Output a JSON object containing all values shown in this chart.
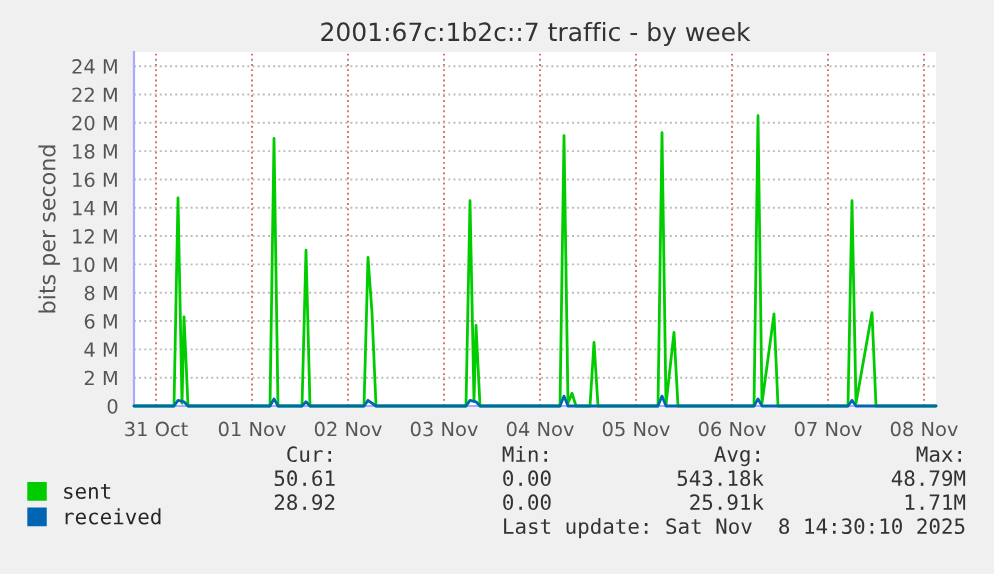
{
  "chart_data": {
    "type": "line",
    "title": "2001:67c:1b2c::7 traffic - by week",
    "ylabel": "bits per second",
    "xlim": [
      "2025-10-30T18:30",
      "2025-11-08T03:00"
    ],
    "xticks": [
      {
        "value": "2025-10-31",
        "label": "31 Oct"
      },
      {
        "value": "2025-11-01",
        "label": "01 Nov"
      },
      {
        "value": "2025-11-02",
        "label": "02 Nov"
      },
      {
        "value": "2025-11-03",
        "label": "03 Nov"
      },
      {
        "value": "2025-11-04",
        "label": "04 Nov"
      },
      {
        "value": "2025-11-05",
        "label": "05 Nov"
      },
      {
        "value": "2025-11-06",
        "label": "06 Nov"
      },
      {
        "value": "2025-11-07",
        "label": "07 Nov"
      },
      {
        "value": "2025-11-08",
        "label": "08 Nov"
      }
    ],
    "ylim": [
      0,
      25
    ],
    "yticks": [
      0,
      {
        "value": 2,
        "label": "2 M"
      },
      {
        "value": 4,
        "label": "4 M"
      },
      {
        "value": 6,
        "label": "6 M"
      },
      {
        "value": 8,
        "label": "8 M"
      },
      {
        "value": 10,
        "label": "10 M"
      },
      {
        "value": 12,
        "label": "12 M"
      },
      {
        "value": 14,
        "label": "14 M"
      },
      {
        "value": 16,
        "label": "16 M"
      },
      {
        "value": 18,
        "label": "18 M"
      },
      {
        "value": 20,
        "label": "20 M"
      },
      {
        "value": 22,
        "label": "22 M"
      },
      {
        "value": 24,
        "label": "24 M"
      }
    ],
    "grid": true,
    "legend": "bottom left",
    "series": [
      {
        "name": "sent",
        "color": "#00cc00",
        "x": [
          "2025-10-30T18:30",
          "2025-10-31T04:30",
          "2025-10-31T05:30",
          "2025-10-31T06:30",
          "2025-10-31T07:00",
          "2025-10-31T08:00",
          "2025-11-01T04:30",
          "2025-11-01T05:30",
          "2025-11-01T06:30",
          "2025-11-01T12:30",
          "2025-11-01T13:30",
          "2025-11-01T14:30",
          "2025-11-02T04:00",
          "2025-11-02T05:00",
          "2025-11-02T06:00",
          "2025-11-02T07:00",
          "2025-11-03T05:30",
          "2025-11-03T06:30",
          "2025-11-03T07:30",
          "2025-11-03T08:00",
          "2025-11-03T09:00",
          "2025-11-04T05:00",
          "2025-11-04T06:00",
          "2025-11-04T07:00",
          "2025-11-04T08:00",
          "2025-11-04T09:00",
          "2025-11-04T12:30",
          "2025-11-04T13:30",
          "2025-11-04T14:30",
          "2025-11-05T05:30",
          "2025-11-05T06:30",
          "2025-11-05T07:30",
          "2025-11-05T09:30",
          "2025-11-05T10:30",
          "2025-11-06T05:30",
          "2025-11-06T06:30",
          "2025-11-06T07:30",
          "2025-11-06T10:30",
          "2025-11-06T11:30",
          "2025-11-07T05:00",
          "2025-11-07T06:00",
          "2025-11-07T07:00",
          "2025-11-07T11:00",
          "2025-11-07T12:00",
          "2025-11-08T03:00"
        ],
        "values": [
          0,
          0,
          14.7,
          0.2,
          6.3,
          0,
          0,
          18.9,
          0,
          0,
          11.0,
          0,
          0,
          10.5,
          6.6,
          0,
          0,
          14.5,
          0.3,
          5.7,
          0,
          0,
          19.1,
          0.2,
          0.9,
          0,
          0,
          4.5,
          0,
          0,
          19.3,
          0.1,
          5.2,
          0,
          0,
          20.5,
          0.2,
          6.5,
          0,
          0,
          14.5,
          0.2,
          6.6,
          0,
          0
        ]
      },
      {
        "name": "received",
        "color": "#0066b3",
        "x": [
          "2025-10-30T18:30",
          "2025-10-31T04:30",
          "2025-10-31T05:30",
          "2025-10-31T07:00",
          "2025-10-31T08:00",
          "2025-11-01T04:30",
          "2025-11-01T05:30",
          "2025-11-01T06:30",
          "2025-11-01T12:30",
          "2025-11-01T13:30",
          "2025-11-01T14:30",
          "2025-11-02T04:00",
          "2025-11-02T05:00",
          "2025-11-02T07:00",
          "2025-11-03T05:30",
          "2025-11-03T06:30",
          "2025-11-03T08:00",
          "2025-11-03T09:00",
          "2025-11-04T05:00",
          "2025-11-04T06:00",
          "2025-11-04T07:00",
          "2025-11-05T05:30",
          "2025-11-05T06:30",
          "2025-11-05T07:30",
          "2025-11-06T05:30",
          "2025-11-06T06:30",
          "2025-11-06T07:30",
          "2025-11-07T05:00",
          "2025-11-07T06:00",
          "2025-11-07T07:00",
          "2025-11-08T03:00"
        ],
        "values": [
          0,
          0,
          0.4,
          0.3,
          0,
          0,
          0.5,
          0,
          0,
          0.3,
          0,
          0,
          0.4,
          0,
          0,
          0.4,
          0.3,
          0,
          0,
          0.7,
          0,
          0,
          0.7,
          0,
          0,
          0.5,
          0,
          0,
          0.4,
          0,
          0
        ]
      }
    ],
    "annotations": [
      "Cur:",
      "Min:",
      "Avg:",
      "Max:",
      "50.61",
      "0.00",
      "543.18k",
      "48.79M",
      "28.92",
      "0.00",
      "25.91k",
      "1.71M",
      "Last update: Sat Nov  8 14:30:10 2025"
    ]
  }
}
